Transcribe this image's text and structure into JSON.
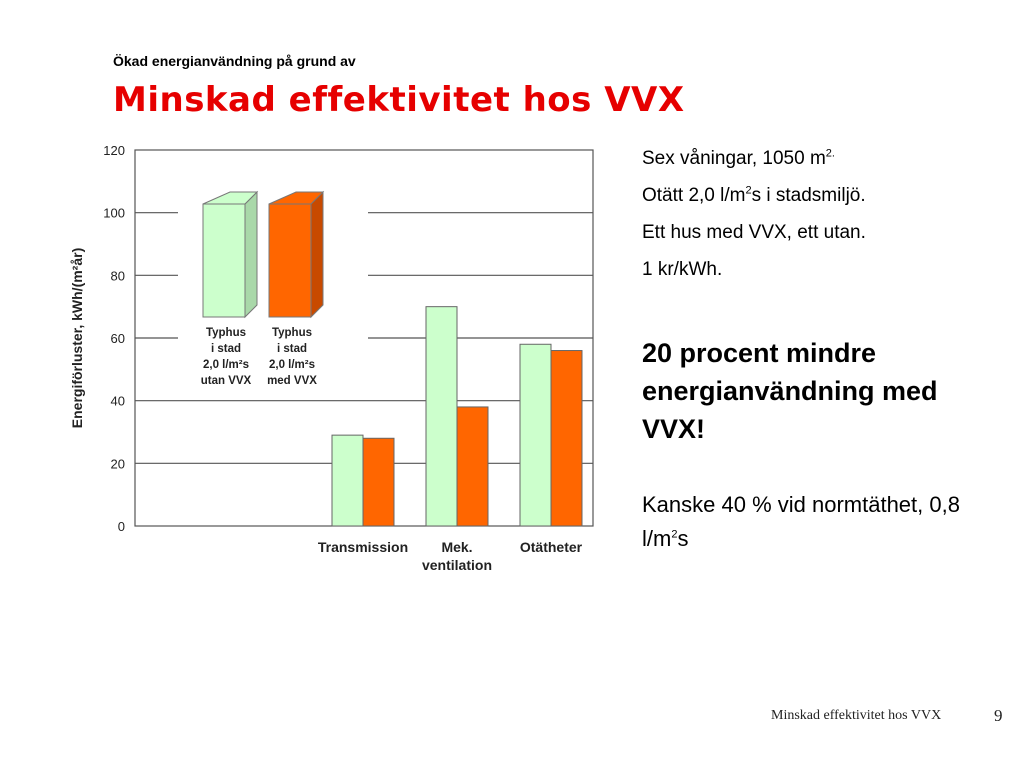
{
  "slide": {
    "subtitle": "Ökad energianvändning på grund av",
    "title": "Minskad effektivitet hos VVX",
    "facts": {
      "line1": "Sex våningar, 1050 m",
      "line1_sup": "2.",
      "line2_pre": "Otätt 2,0 l/m",
      "line2_sup": "2",
      "line2_post": "s i stadsmiljö.",
      "line3": "Ett hus med VVX, ett utan.",
      "line4": "1 kr/kWh."
    },
    "highlight": "20 procent mindre energianvändning med VVX!",
    "note_pre": "Kanske 40 % vid normtäthet, 0,8 l/m",
    "note_sup": "2",
    "note_post": "s",
    "footer": "Minskad effektivitet hos VVX",
    "page_number": "9"
  },
  "chart_data": {
    "type": "bar",
    "ylabel": "Energiförluster, kWh/(m²år)",
    "ylim": [
      0,
      120
    ],
    "yticks": [
      "0",
      "20",
      "40",
      "60",
      "80",
      "100",
      "120"
    ],
    "grid": true,
    "categories": [
      {
        "lines": [
          "Transmission"
        ]
      },
      {
        "lines": [
          "Mek.",
          "ventilation"
        ]
      },
      {
        "lines": [
          "Otätheter"
        ]
      }
    ],
    "series": [
      {
        "legend_lines": [
          "Typhus",
          "i stad",
          "2,0 l/m²s",
          "utan VVX"
        ],
        "color": "#ccffcc",
        "values": [
          29,
          70,
          58
        ]
      },
      {
        "legend_lines": [
          "Typhus",
          "i stad",
          "2,0 l/m²s",
          "med VVX"
        ],
        "color": "#ff6600",
        "values": [
          28,
          38,
          56
        ]
      }
    ],
    "legend_placement": "top-left"
  }
}
